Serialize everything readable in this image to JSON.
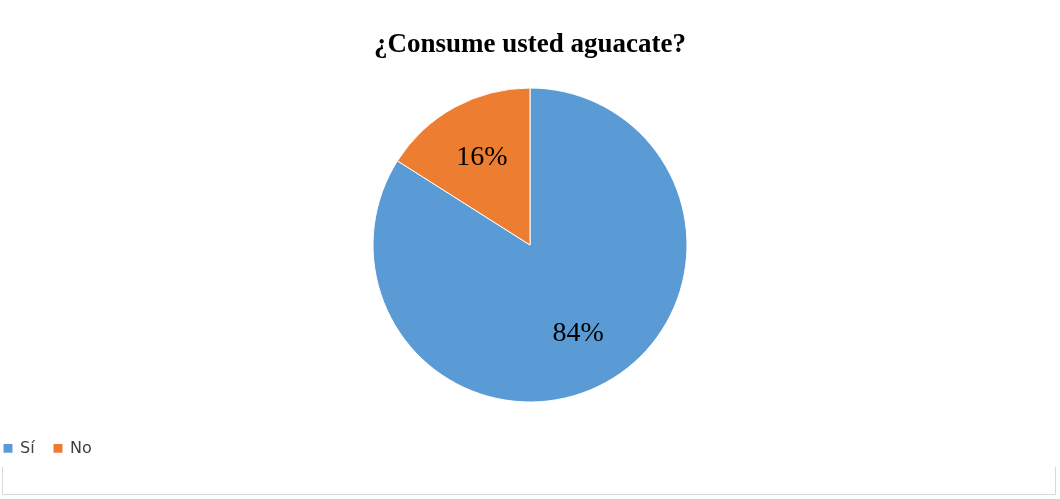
{
  "chart_data": {
    "type": "pie",
    "title": "¿Consume usted aguacate?",
    "categories": [
      "Sí",
      "No"
    ],
    "values": [
      84,
      16
    ],
    "colors": [
      "#5b9bd5",
      "#ed7d31"
    ],
    "value_labels": [
      "84%",
      "16%"
    ],
    "legend": "bottom"
  }
}
